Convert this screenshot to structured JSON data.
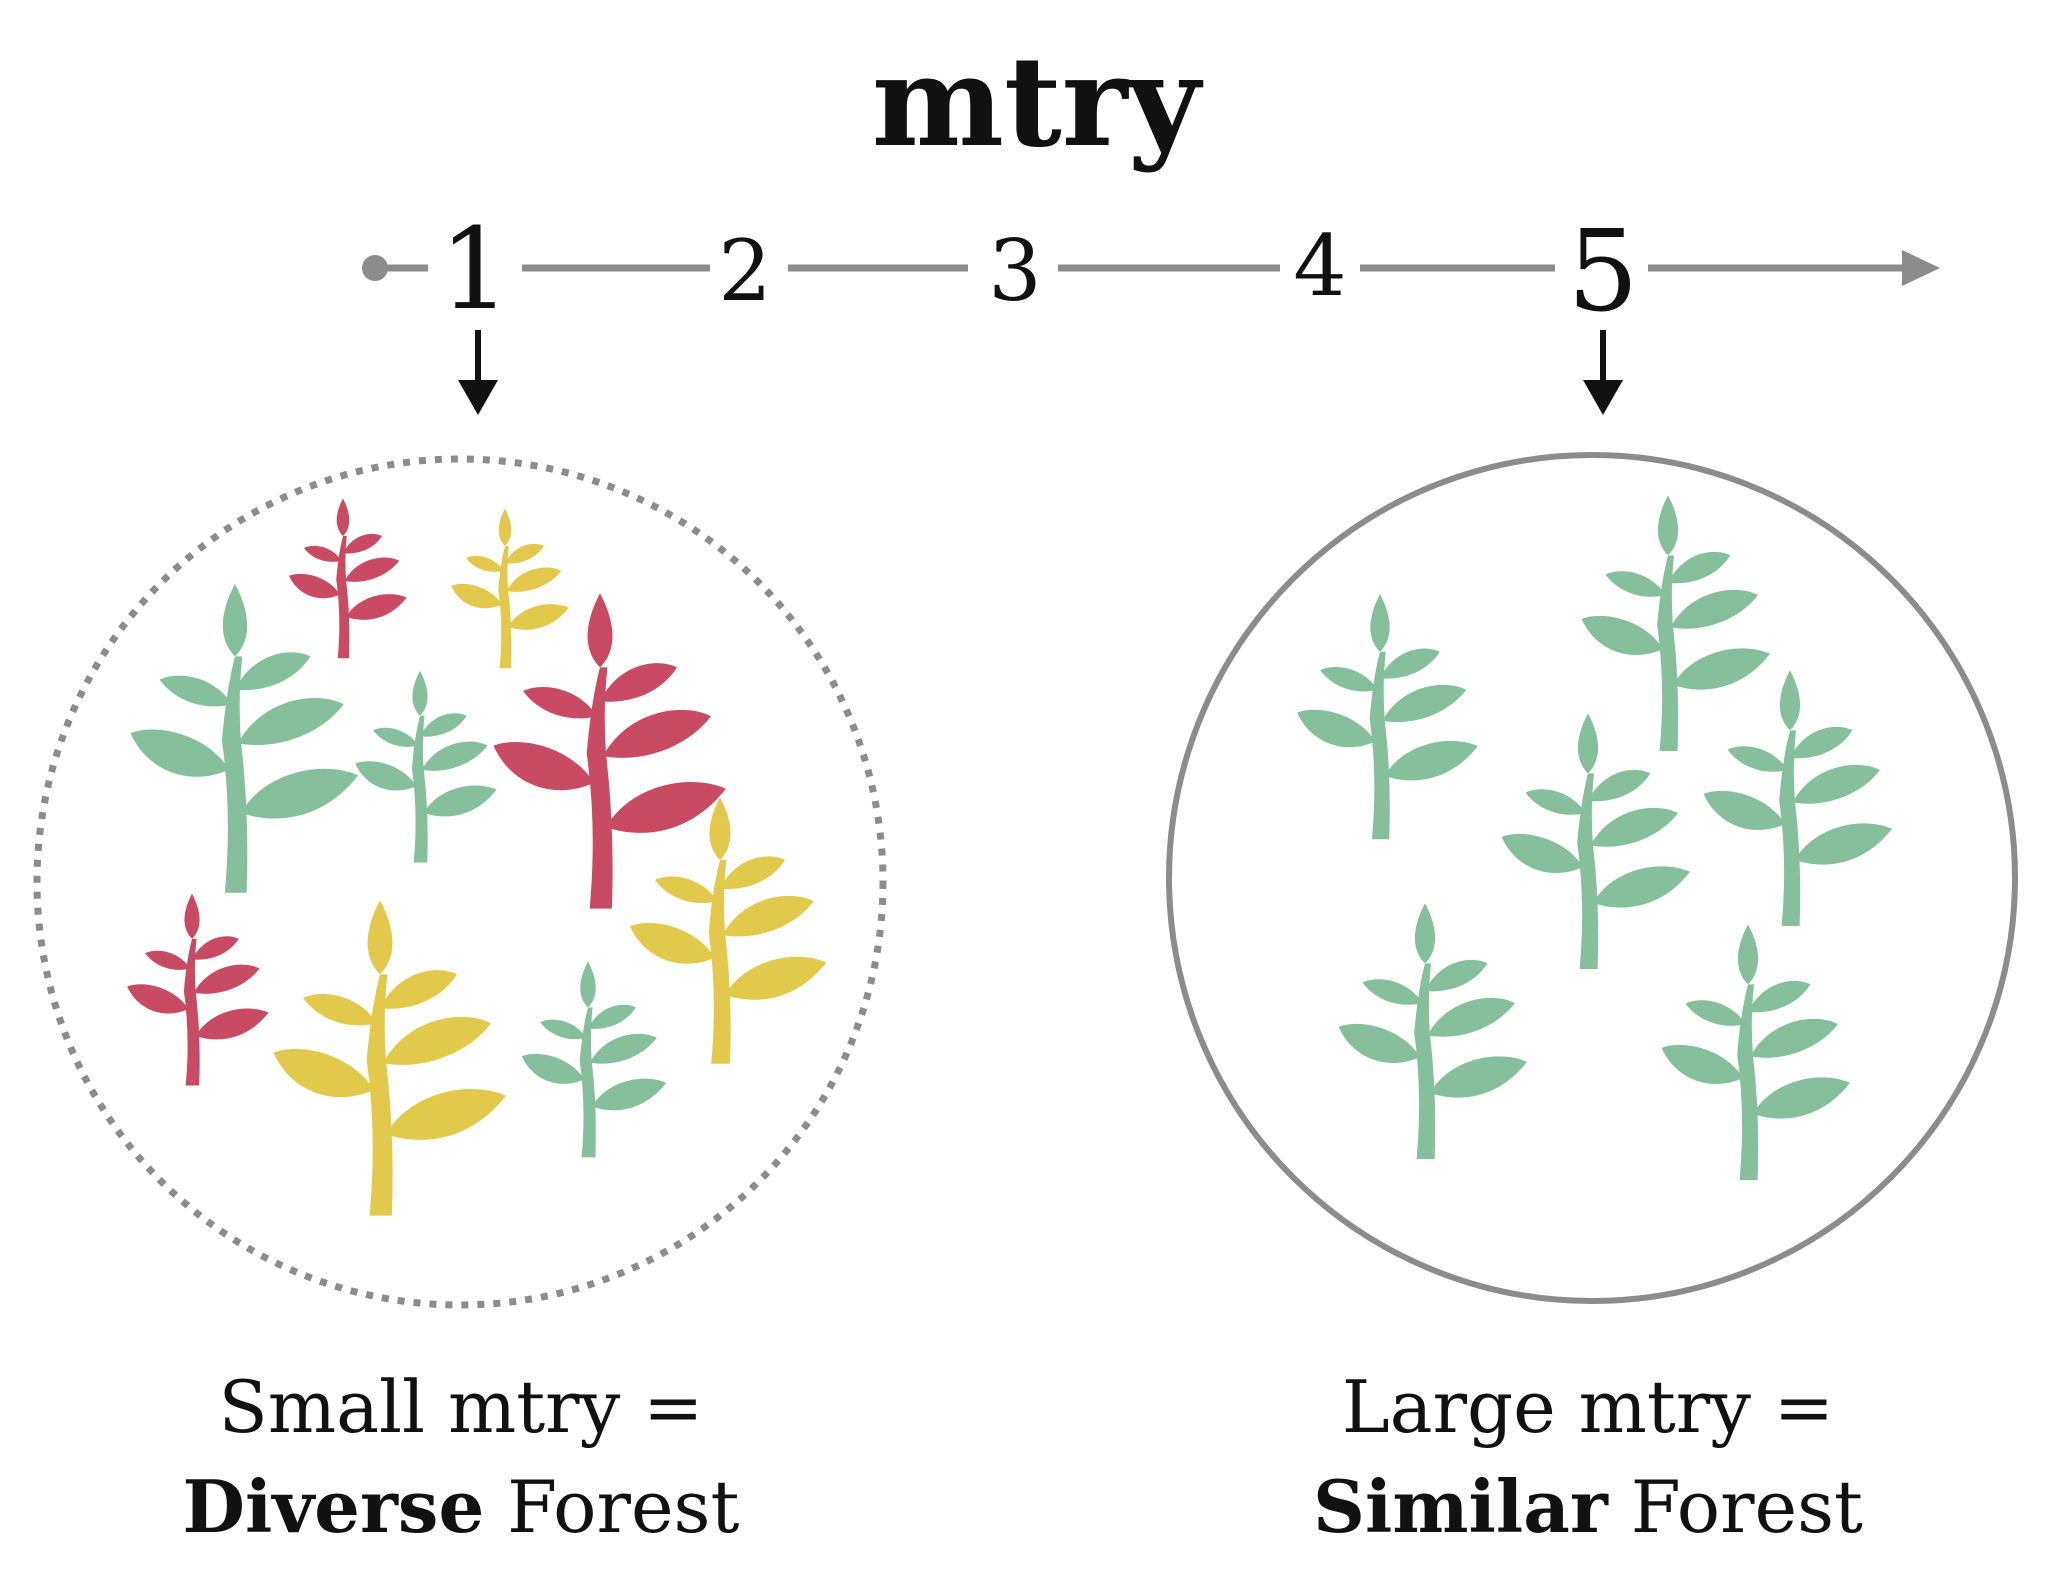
{
  "title": "mtry",
  "scale": {
    "values": [
      "1",
      "2",
      "3",
      "4",
      "5"
    ]
  },
  "left_panel": {
    "caption_line1": "Small mtry =",
    "caption_bold": "Diverse",
    "caption_rest": " Forest"
  },
  "right_panel": {
    "caption_line1": "Large mtry =",
    "caption_bold": "Similar",
    "caption_rest": " Forest"
  },
  "colors": {
    "green": "#86bf9c",
    "red": "#c94a63",
    "yellow": "#e2c94c",
    "axis": "#8c8c8c",
    "text": "#111111"
  },
  "icons": {
    "plant": "plant-icon"
  }
}
